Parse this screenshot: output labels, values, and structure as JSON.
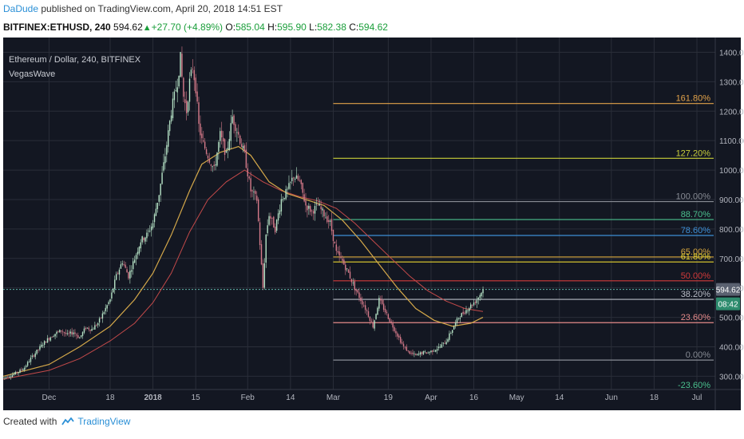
{
  "header": {
    "author": "DaDude",
    "published_text": "published on TradingView.com, April 20, 2018 14:51 EST",
    "symbol": "BITFINEX:ETHUSD, 240",
    "price": "594.62",
    "change": "+27.70 (+4.89%)",
    "o_label": "O:",
    "o_value": "585.04",
    "h_label": "H:",
    "h_value": "595.90",
    "l_label": "L:",
    "l_value": "582.38",
    "c_label": "C:",
    "c_value": "594.62"
  },
  "legend": {
    "title": "Ethereum / Dollar, 240, BITFINEX",
    "indicator": "VegasWave"
  },
  "footer": {
    "created_with": "Created with",
    "brand": "TradingView"
  },
  "colors": {
    "background": "#131722",
    "grid": "#2a2e39",
    "candle_up": "#b7e4c7",
    "candle_down": "#d67a8a",
    "ema_fast": "#d4a84a",
    "ema_slow": "#c44a4a",
    "ema_mid": "#4a7fbf",
    "price_line": "#5fb3a8"
  },
  "chart_data": {
    "type": "candlestick",
    "symbol": "ETHUSD",
    "timeframe": "240",
    "y_axis": {
      "ticks": [
        300,
        400,
        500,
        600,
        700,
        800,
        900,
        1000,
        1100,
        1200,
        1300,
        1400
      ],
      "labels": [
        "300.00",
        "400.00",
        "500.00",
        "600.00",
        "700.00",
        "800.00",
        "900.00",
        "1000.00",
        "1100.00",
        "1200.00",
        "1300.00",
        "1400.00"
      ],
      "range": [
        255,
        1450
      ]
    },
    "x_axis": {
      "labels": [
        "Dec",
        "18",
        "2018",
        "15",
        "Feb",
        "14",
        "Mar",
        "19",
        "Apr",
        "16",
        "May",
        "14",
        "Jun",
        "18",
        "Jul"
      ],
      "positions": [
        -20,
        0,
        14,
        28,
        45,
        59,
        73,
        91,
        105,
        119,
        133,
        147,
        164,
        178,
        192
      ],
      "range": [
        -35,
        198
      ]
    },
    "current_price": {
      "value": 594.62,
      "label": "594.62",
      "countdown": "08:42"
    },
    "fib_levels": [
      {
        "label": "161.80%",
        "value": 1226,
        "color": "#e3a34a"
      },
      {
        "label": "127.20%",
        "value": 1040,
        "color": "#c9cf3a"
      },
      {
        "label": "100.00%",
        "value": 893,
        "color": "#888c95"
      },
      {
        "label": "88.70%",
        "value": 832,
        "color": "#4bc08e"
      },
      {
        "label": "78.60%",
        "value": 778,
        "color": "#3d8fd6"
      },
      {
        "label": "65.00%",
        "value": 705,
        "color": "#d9a83e"
      },
      {
        "label": "61.80%",
        "value": 688,
        "color": "#e6d430"
      },
      {
        "label": "50.00%",
        "value": 624,
        "color": "#d13a3a"
      },
      {
        "label": "38.20%",
        "value": 561,
        "color": "#b8bcc6"
      },
      {
        "label": "23.60%",
        "value": 482,
        "color": "#e58a8a"
      },
      {
        "label": "0.00%",
        "value": 355,
        "color": "#888c95"
      },
      {
        "label": "-23.60%",
        "value": 228,
        "color": "#4bc08e"
      }
    ],
    "price_path": [
      [
        -35,
        295
      ],
      [
        -32,
        305
      ],
      [
        -30,
        315
      ],
      [
        -28,
        330
      ],
      [
        -26,
        360
      ],
      [
        -24,
        385
      ],
      [
        -22,
        410
      ],
      [
        -20,
        430
      ],
      [
        -18,
        445
      ],
      [
        -16,
        455
      ],
      [
        -14,
        440
      ],
      [
        -12,
        450
      ],
      [
        -10,
        430
      ],
      [
        -8,
        465
      ],
      [
        -6,
        460
      ],
      [
        -4,
        480
      ],
      [
        -2,
        520
      ],
      [
        0,
        560
      ],
      [
        2,
        640
      ],
      [
        4,
        690
      ],
      [
        6,
        640
      ],
      [
        8,
        700
      ],
      [
        10,
        760
      ],
      [
        12,
        780
      ],
      [
        14,
        820
      ],
      [
        16,
        920
      ],
      [
        18,
        1050
      ],
      [
        20,
        1200
      ],
      [
        22,
        1300
      ],
      [
        23,
        1380
      ],
      [
        24,
        1250
      ],
      [
        25,
        1200
      ],
      [
        26,
        1300
      ],
      [
        27,
        1350
      ],
      [
        28,
        1280
      ],
      [
        29,
        1150
      ],
      [
        30,
        1100
      ],
      [
        32,
        1050
      ],
      [
        34,
        1000
      ],
      [
        36,
        1120
      ],
      [
        38,
        1050
      ],
      [
        40,
        1180
      ],
      [
        42,
        1120
      ],
      [
        44,
        1050
      ],
      [
        46,
        930
      ],
      [
        48,
        900
      ],
      [
        50,
        600
      ],
      [
        51,
        780
      ],
      [
        52,
        850
      ],
      [
        54,
        800
      ],
      [
        56,
        900
      ],
      [
        58,
        930
      ],
      [
        60,
        980
      ],
      [
        62,
        960
      ],
      [
        64,
        880
      ],
      [
        66,
        860
      ],
      [
        68,
        880
      ],
      [
        70,
        850
      ],
      [
        72,
        820
      ],
      [
        74,
        720
      ],
      [
        76,
        690
      ],
      [
        78,
        650
      ],
      [
        80,
        600
      ],
      [
        82,
        560
      ],
      [
        84,
        520
      ],
      [
        86,
        470
      ],
      [
        88,
        560
      ],
      [
        90,
        520
      ],
      [
        92,
        480
      ],
      [
        94,
        440
      ],
      [
        96,
        400
      ],
      [
        98,
        380
      ],
      [
        100,
        370
      ],
      [
        102,
        380
      ],
      [
        104,
        380
      ],
      [
        106,
        390
      ],
      [
        108,
        400
      ],
      [
        110,
        420
      ],
      [
        112,
        460
      ],
      [
        114,
        500
      ],
      [
        116,
        520
      ],
      [
        118,
        540
      ],
      [
        120,
        560
      ],
      [
        122,
        594.62
      ]
    ],
    "ema_fast_path": [
      [
        -35,
        300
      ],
      [
        -20,
        340
      ],
      [
        -10,
        400
      ],
      [
        0,
        470
      ],
      [
        8,
        560
      ],
      [
        14,
        650
      ],
      [
        20,
        780
      ],
      [
        26,
        930
      ],
      [
        30,
        1020
      ],
      [
        36,
        1060
      ],
      [
        42,
        1080
      ],
      [
        46,
        1050
      ],
      [
        52,
        960
      ],
      [
        58,
        920
      ],
      [
        64,
        900
      ],
      [
        70,
        880
      ],
      [
        76,
        830
      ],
      [
        82,
        760
      ],
      [
        88,
        680
      ],
      [
        94,
        600
      ],
      [
        100,
        530
      ],
      [
        106,
        490
      ],
      [
        112,
        470
      ],
      [
        118,
        480
      ],
      [
        122,
        500
      ]
    ],
    "ema_slow_path": [
      [
        -35,
        290
      ],
      [
        -20,
        320
      ],
      [
        -10,
        360
      ],
      [
        0,
        420
      ],
      [
        8,
        480
      ],
      [
        14,
        550
      ],
      [
        20,
        650
      ],
      [
        26,
        790
      ],
      [
        32,
        900
      ],
      [
        38,
        960
      ],
      [
        44,
        1000
      ],
      [
        50,
        960
      ],
      [
        56,
        930
      ],
      [
        62,
        910
      ],
      [
        68,
        895
      ],
      [
        74,
        870
      ],
      [
        80,
        820
      ],
      [
        86,
        760
      ],
      [
        92,
        700
      ],
      [
        98,
        640
      ],
      [
        104,
        590
      ],
      [
        110,
        555
      ],
      [
        116,
        530
      ],
      [
        122,
        520
      ]
    ],
    "annotations": [
      "161.80%",
      "127.20%",
      "100.00%",
      "88.70%",
      "78.60%",
      "65.00%",
      "61.80%",
      "50.00%",
      "38.20%",
      "23.60%",
      "0.00%",
      "-23.60%"
    ]
  }
}
